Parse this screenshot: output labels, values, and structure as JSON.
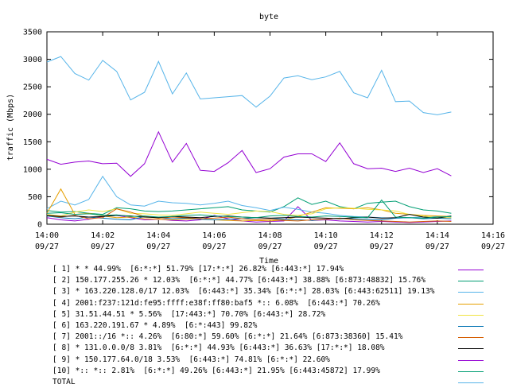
{
  "chart_data": {
    "type": "line",
    "title": "byte",
    "ylabel": "traffic (Mbps)",
    "xlabel": "Time",
    "ylim": [
      0,
      3500
    ],
    "yticks": [
      "0",
      "500",
      "1000",
      "1500",
      "2000",
      "2500",
      "3000",
      "3500"
    ],
    "xticks": [
      {
        "time": "14:00",
        "date": "09/27"
      },
      {
        "time": "14:02",
        "date": "09/27"
      },
      {
        "time": "14:04",
        "date": "09/27"
      },
      {
        "time": "14:06",
        "date": "09/27"
      },
      {
        "time": "14:08",
        "date": "09/27"
      },
      {
        "time": "14:10",
        "date": "09/27"
      },
      {
        "time": "14:12",
        "date": "09/27"
      },
      {
        "time": "14:14",
        "date": "09/27"
      },
      {
        "time": "14:16",
        "date": "09/27"
      }
    ],
    "x": [
      "14:00",
      "14:00:30",
      "14:01",
      "14:01:30",
      "14:02",
      "14:02:30",
      "14:03",
      "14:03:30",
      "14:04",
      "14:04:30",
      "14:05",
      "14:05:30",
      "14:06",
      "14:06:30",
      "14:07",
      "14:07:30",
      "14:08",
      "14:08:30",
      "14:09",
      "14:09:30",
      "14:10",
      "14:10:30",
      "14:11",
      "14:11:30",
      "14:12",
      "14:12:30",
      "14:13",
      "14:13:30",
      "14:14",
      "14:14:30"
    ],
    "series": [
      {
        "name": "[ 1] * * 44.99%  [6:*:*] 51.79% [17:*:*] 26.82% [6:443:*] 17.94%",
        "color": "#9400d3",
        "values": [
          120,
          80,
          60,
          90,
          140,
          160,
          120,
          80,
          90,
          70,
          60,
          80,
          160,
          100,
          60,
          40,
          50,
          60,
          320,
          70,
          80,
          60,
          50,
          40,
          50,
          40,
          30,
          40,
          50,
          60
        ]
      },
      {
        "name": "[ 2] 150.177.255.26 * 12.03%  [6:*:*] 44.77% [6:443:*] 38.88% [6:873:48832] 15.76%",
        "color": "#009e73",
        "values": [
          250,
          220,
          230,
          200,
          180,
          300,
          280,
          240,
          230,
          240,
          260,
          280,
          300,
          320,
          260,
          240,
          220,
          320,
          480,
          360,
          420,
          320,
          280,
          380,
          400,
          420,
          320,
          260,
          240,
          200
        ]
      },
      {
        "name": "[ 3] * 163.220.128.0/17 12.03%  [6:443:*] 35.34% [6:*:*] 28.03% [6:443:62511] 19.13%",
        "color": "#56b4e9",
        "values": [
          280,
          420,
          350,
          450,
          870,
          500,
          350,
          330,
          420,
          390,
          380,
          350,
          380,
          420,
          340,
          300,
          250,
          310,
          270,
          220,
          200,
          160,
          140,
          130,
          120,
          110,
          120,
          130,
          140,
          130
        ]
      },
      {
        "name": "[ 4] 2001:f237:121d:fe95:ffff:e38f:ff80:baf5 *:: 6.08%  [6:443:*] 70.26%",
        "color": "#e69f00",
        "values": [
          200,
          640,
          180,
          200,
          150,
          120,
          130,
          100,
          90,
          80,
          90,
          100,
          80,
          70,
          60,
          70,
          60,
          80,
          140,
          220,
          300,
          290,
          280,
          300,
          260,
          200,
          180,
          160,
          150,
          140
        ]
      },
      {
        "name": "[ 5] 31.51.44.51 * 5.56%  [17:443:*] 70.70% [6:443:*] 28.72%",
        "color": "#f0e442",
        "values": [
          180,
          150,
          220,
          260,
          230,
          280,
          200,
          190,
          170,
          160,
          190,
          220,
          200,
          180,
          210,
          240,
          230,
          180,
          160,
          190,
          280,
          300,
          290,
          270,
          260,
          240,
          180,
          150,
          120,
          120
        ]
      },
      {
        "name": "[ 6] 163.220.191.67 * 4.89%  [6:*:443] 99.82%",
        "color": "#0072b2",
        "values": [
          150,
          120,
          100,
          130,
          110,
          90,
          80,
          140,
          120,
          100,
          110,
          90,
          80,
          90,
          100,
          120,
          110,
          90,
          80,
          70,
          90,
          110,
          100,
          90,
          80,
          110,
          120,
          100,
          110,
          100
        ]
      },
      {
        "name": "[ 7] 2001::/16 *:: 4.26%  [6:80:*] 59.60% [6:*:*] 21.64% [6:873:38360] 15.41%",
        "color": "#d55e00",
        "values": [
          160,
          130,
          160,
          100,
          120,
          280,
          220,
          140,
          110,
          130,
          120,
          100,
          110,
          130,
          100,
          80,
          90,
          70,
          60,
          80,
          90,
          110,
          80,
          70,
          60,
          50,
          40,
          50,
          60,
          50
        ]
      },
      {
        "name": "[ 8] * 131.0.0.0/8 3.81%  [6:*:*] 44.93% [6:443:*] 36.63% [17:*:*] 18.08%",
        "color": "#000000",
        "values": [
          160,
          140,
          150,
          130,
          140,
          160,
          150,
          130,
          120,
          140,
          130,
          120,
          140,
          150,
          130,
          120,
          110,
          120,
          130,
          120,
          110,
          100,
          120,
          130,
          110,
          120,
          180,
          130,
          110,
          150
        ]
      },
      {
        "name": "[ 9] * 150.177.64.0/18 3.53%  [6:443:*] 74.81% [6:*:*] 22.60%",
        "color": "#9400d3",
        "values": [
          1180,
          1090,
          1130,
          1150,
          1100,
          1110,
          870,
          1100,
          1680,
          1130,
          1470,
          980,
          960,
          1120,
          1340,
          940,
          1010,
          1220,
          1280,
          1280,
          1140,
          1480,
          1100,
          1010,
          1020,
          960,
          1020,
          940,
          1010,
          880
        ]
      },
      {
        "name": "[10] *:: *:: 2.81%  [6:*:*] 49.26% [6:443:*] 21.95% [6:443:45872] 17.99%",
        "color": "#009e73",
        "values": [
          200,
          210,
          180,
          190,
          160,
          170,
          140,
          150,
          130,
          140,
          160,
          170,
          150,
          140,
          130,
          120,
          150,
          160,
          140,
          130,
          150,
          140,
          130,
          120,
          440,
          130,
          120,
          110,
          130,
          140
        ]
      },
      {
        "name": "TOTAL",
        "color": "#56b4e9",
        "values": [
          2950,
          3050,
          2740,
          2620,
          2980,
          2780,
          2260,
          2400,
          2960,
          2370,
          2750,
          2280,
          2300,
          2320,
          2340,
          2130,
          2330,
          2660,
          2700,
          2630,
          2680,
          2780,
          2390,
          2300,
          2800,
          2230,
          2240,
          2030,
          1990,
          2040
        ]
      }
    ]
  }
}
